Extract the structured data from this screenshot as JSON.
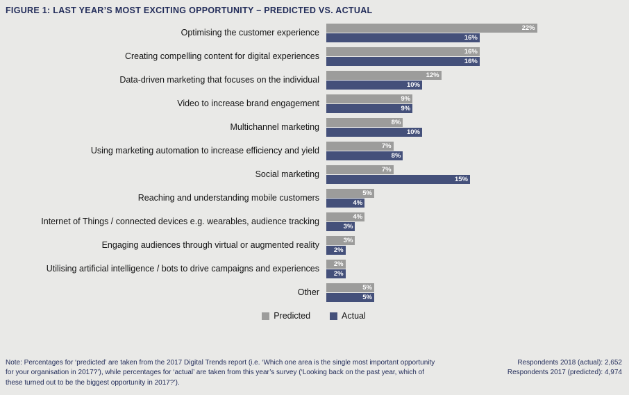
{
  "title": "FIGURE 1: LAST YEAR’S MOST EXCITING OPPORTUNITY – PREDICTED VS. ACTUAL",
  "legend": {
    "predicted": "Predicted",
    "actual": "Actual"
  },
  "colors": {
    "predicted": "#9c9c9b",
    "actual": "#44507a",
    "title": "#232d5a",
    "background": "#e9e9e7"
  },
  "chart_data": {
    "type": "bar",
    "orientation": "horizontal",
    "title": "Last year’s most exciting opportunity – predicted vs. actual",
    "categories": [
      "Optimising the customer experience",
      "Creating compelling content for digital experiences",
      "Data-driven marketing that focuses on the individual",
      "Video to increase brand engagement",
      "Multichannel marketing",
      "Using marketing automation to increase efficiency and yield",
      "Social marketing",
      "Reaching and understanding mobile customers",
      "Internet of Things / connected devices e.g. wearables, audience tracking",
      "Engaging audiences through virtual or augmented reality",
      "Utilising artificial intelligence / bots to drive campaigns and experiences",
      "Other"
    ],
    "series": [
      {
        "name": "Predicted",
        "values": [
          22,
          16,
          12,
          9,
          8,
          7,
          7,
          5,
          4,
          3,
          2,
          5
        ]
      },
      {
        "name": "Actual",
        "values": [
          16,
          16,
          10,
          9,
          10,
          8,
          15,
          4,
          3,
          2,
          2,
          5
        ]
      }
    ],
    "value_suffix": "%",
    "xlim": [
      0,
      24
    ],
    "grid": false,
    "legend_position": "bottom"
  },
  "footer": {
    "note": "Note: Percentages for ‘predicted’ are taken from the 2017 Digital Trends report (i.e. ‘Which one area is the single most important opportunity for your organisation in 2017?’), while percentages for ‘actual’ are taken from this year’s survey (‘Looking back on the past year, which of these turned out to be the biggest opportunity in 2017?’).",
    "respondents_line1": "Respondents 2018 (actual): 2,652",
    "respondents_line2": "Respondents 2017 (predicted): 4,974"
  }
}
